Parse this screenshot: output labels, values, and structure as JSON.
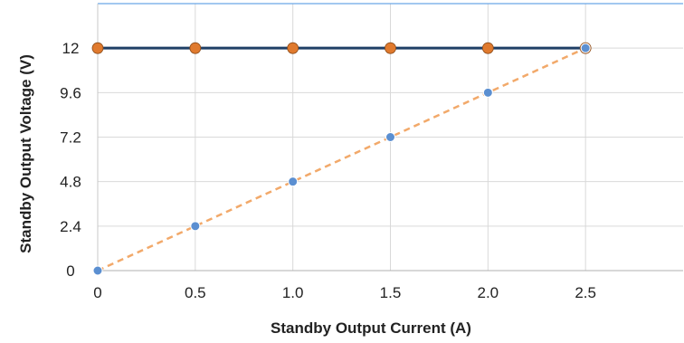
{
  "chart_data": {
    "type": "line",
    "xlabel": "Standby Output Current (A)",
    "ylabel": "Standby Output Voltage (V)",
    "xlim": [
      0,
      3.0
    ],
    "ylim": [
      0,
      14.4
    ],
    "x_ticks": [
      0,
      0.5,
      1.0,
      1.5,
      2.0,
      2.5
    ],
    "x_tick_labels": [
      "0",
      "0.5",
      "1.0",
      "1.5",
      "2.0",
      "2.5"
    ],
    "y_ticks": [
      0,
      2.4,
      4.8,
      7.2,
      9.6,
      12
    ],
    "y_tick_labels": [
      "0",
      "2.4",
      "4.8",
      "7.2",
      "9.6",
      "12"
    ],
    "grid": true,
    "series": [
      {
        "x": [
          0,
          0.5,
          1.0,
          1.5,
          2.0,
          2.5
        ],
        "values": [
          12,
          12,
          12,
          12,
          12,
          12
        ],
        "line_color": "#1f3f66",
        "line_style": "solid",
        "marker_color": "#e07a2e"
      },
      {
        "x": [
          0,
          0.5,
          1.0,
          1.5,
          2.0,
          2.5
        ],
        "values": [
          0,
          2.4,
          4.8,
          7.2,
          9.6,
          12
        ],
        "line_color": "#f2a96a",
        "line_style": "dashed",
        "marker_color": "#5b8fd1"
      }
    ]
  }
}
